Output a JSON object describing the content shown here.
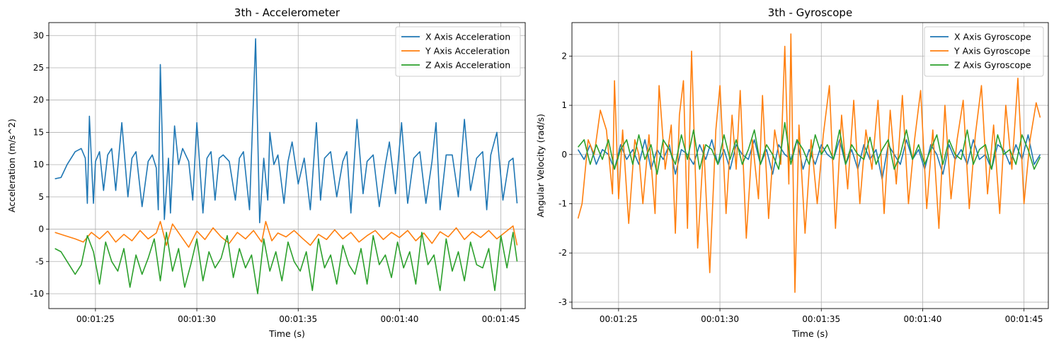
{
  "colors": {
    "x": "#1f77b4",
    "y": "#ff7f0e",
    "z": "#2ca02c",
    "grid": "#b0b0b0"
  },
  "chart_data": [
    {
      "type": "line",
      "title": "3th - Accelerometer",
      "xlabel": "Time (s)",
      "ylabel": "Acceleration (m/s^2)",
      "xlim": [
        82.7,
        106.2
      ],
      "ylim": [
        -12.3,
        32.0
      ],
      "yticks": [
        -10,
        -5,
        0,
        5,
        10,
        15,
        20,
        25,
        30
      ],
      "xticks": [
        85,
        90,
        95,
        100,
        105
      ],
      "xtick_labels": [
        "00:01:25",
        "00:01:30",
        "00:01:35",
        "00:01:40",
        "00:01:45"
      ],
      "grid": true,
      "legend": "top-right",
      "series": [
        {
          "name": "X Axis Acceleration",
          "color": "#1f77b4",
          "x": [
            83.0,
            83.3,
            83.6,
            84.0,
            84.3,
            84.5,
            84.6,
            84.7,
            84.9,
            85.0,
            85.2,
            85.4,
            85.6,
            85.8,
            86.0,
            86.3,
            86.6,
            86.8,
            87.0,
            87.3,
            87.6,
            87.8,
            88.0,
            88.1,
            88.2,
            88.4,
            88.6,
            88.7,
            88.9,
            89.1,
            89.3,
            89.6,
            89.8,
            90.0,
            90.3,
            90.5,
            90.7,
            90.9,
            91.1,
            91.3,
            91.6,
            91.9,
            92.1,
            92.3,
            92.6,
            92.9,
            93.1,
            93.3,
            93.5,
            93.6,
            93.8,
            94.0,
            94.3,
            94.5,
            94.7,
            95.0,
            95.3,
            95.6,
            95.9,
            96.1,
            96.3,
            96.6,
            96.9,
            97.2,
            97.4,
            97.6,
            97.9,
            98.2,
            98.4,
            98.7,
            99.0,
            99.3,
            99.5,
            99.8,
            100.1,
            100.4,
            100.7,
            101.0,
            101.3,
            101.6,
            101.8,
            102.0,
            102.3,
            102.6,
            102.9,
            103.2,
            103.5,
            103.8,
            104.1,
            104.3,
            104.5,
            104.8,
            105.1,
            105.4,
            105.6,
            105.8
          ],
          "y": [
            7.8,
            8.0,
            10.0,
            12.0,
            12.5,
            11.0,
            4.0,
            17.5,
            4.0,
            10.5,
            12.0,
            6.0,
            11.5,
            12.5,
            6.0,
            16.5,
            5.0,
            11.0,
            12.0,
            3.5,
            10.5,
            11.5,
            9.5,
            3.0,
            25.5,
            1.5,
            11.0,
            2.5,
            16.0,
            10.0,
            12.5,
            10.5,
            4.5,
            16.5,
            2.5,
            11.0,
            12.0,
            4.5,
            11.0,
            11.5,
            10.5,
            4.5,
            11.0,
            12.0,
            3.0,
            29.5,
            1.0,
            11.0,
            4.5,
            15.0,
            10.0,
            11.5,
            4.0,
            10.5,
            13.5,
            7.0,
            11.0,
            3.0,
            16.5,
            4.5,
            11.0,
            12.0,
            5.0,
            10.5,
            12.0,
            2.5,
            17.0,
            5.5,
            10.5,
            11.5,
            3.5,
            10.0,
            13.5,
            5.5,
            16.5,
            4.0,
            11.0,
            12.0,
            4.0,
            10.5,
            16.5,
            3.0,
            11.5,
            11.5,
            5.0,
            17.0,
            6.0,
            11.0,
            12.0,
            3.0,
            11.5,
            15.0,
            4.5,
            10.5,
            11.0,
            4.0
          ]
        },
        {
          "name": "Y Axis Acceleration",
          "color": "#ff7f0e",
          "x": [
            83.0,
            83.5,
            84.0,
            84.4,
            84.8,
            85.2,
            85.6,
            86.0,
            86.4,
            86.8,
            87.2,
            87.6,
            88.0,
            88.2,
            88.5,
            88.8,
            89.2,
            89.6,
            90.0,
            90.4,
            90.8,
            91.2,
            91.6,
            92.0,
            92.4,
            92.8,
            93.2,
            93.4,
            93.7,
            94.0,
            94.4,
            94.8,
            95.2,
            95.6,
            96.0,
            96.4,
            96.8,
            97.2,
            97.6,
            98.0,
            98.4,
            98.8,
            99.2,
            99.6,
            100.0,
            100.4,
            100.8,
            101.2,
            101.6,
            102.0,
            102.4,
            102.8,
            103.2,
            103.6,
            104.0,
            104.4,
            104.8,
            105.2,
            105.6,
            105.8
          ],
          "y": [
            -0.5,
            -1.0,
            -1.5,
            -2.0,
            -0.5,
            -1.5,
            -0.3,
            -2.0,
            -0.8,
            -1.8,
            -0.2,
            -1.5,
            -0.6,
            1.2,
            -2.5,
            0.8,
            -1.0,
            -2.8,
            -0.3,
            -1.6,
            0.2,
            -1.2,
            -2.2,
            -0.5,
            -1.5,
            -0.2,
            -2.0,
            1.2,
            -1.8,
            -0.6,
            -1.2,
            -0.2,
            -1.4,
            -2.5,
            -0.8,
            -1.6,
            -0.1,
            -1.5,
            -0.5,
            -2.0,
            -1.0,
            -0.2,
            -1.6,
            -0.5,
            -1.3,
            -0.2,
            -1.8,
            -0.6,
            -2.2,
            -0.4,
            -1.2,
            0.2,
            -1.6,
            -0.4,
            -1.3,
            -0.2,
            -1.5,
            -0.5,
            0.5,
            -2.5
          ]
        },
        {
          "name": "Z Axis Acceleration",
          "color": "#2ca02c",
          "x": [
            83.0,
            83.3,
            83.6,
            84.0,
            84.3,
            84.6,
            84.9,
            85.2,
            85.5,
            85.8,
            86.1,
            86.4,
            86.7,
            87.0,
            87.3,
            87.6,
            87.9,
            88.2,
            88.5,
            88.8,
            89.1,
            89.4,
            89.7,
            90.0,
            90.3,
            90.6,
            90.9,
            91.2,
            91.5,
            91.8,
            92.1,
            92.4,
            92.7,
            93.0,
            93.3,
            93.6,
            93.9,
            94.2,
            94.5,
            94.8,
            95.1,
            95.4,
            95.7,
            96.0,
            96.3,
            96.6,
            96.9,
            97.2,
            97.5,
            97.8,
            98.1,
            98.4,
            98.7,
            99.0,
            99.3,
            99.6,
            99.9,
            100.2,
            100.5,
            100.8,
            101.1,
            101.4,
            101.7,
            102.0,
            102.3,
            102.6,
            102.9,
            103.2,
            103.5,
            103.8,
            104.1,
            104.4,
            104.7,
            105.0,
            105.3,
            105.6,
            105.8
          ],
          "y": [
            -3.0,
            -3.5,
            -5.0,
            -7.0,
            -5.5,
            -1.0,
            -3.5,
            -8.5,
            -2.0,
            -5.0,
            -6.5,
            -3.0,
            -9.0,
            -4.0,
            -7.0,
            -4.5,
            -1.5,
            -8.0,
            -0.5,
            -6.5,
            -3.0,
            -9.0,
            -5.5,
            -1.5,
            -8.0,
            -3.5,
            -6.0,
            -4.5,
            -1.0,
            -7.5,
            -3.0,
            -6.0,
            -4.0,
            -10.0,
            -1.5,
            -6.5,
            -3.5,
            -8.0,
            -2.0,
            -5.0,
            -6.5,
            -3.5,
            -9.5,
            -1.5,
            -6.0,
            -4.0,
            -8.5,
            -2.5,
            -5.5,
            -7.0,
            -3.0,
            -8.5,
            -1.0,
            -5.5,
            -4.0,
            -7.5,
            -2.0,
            -6.0,
            -3.5,
            -8.5,
            -0.5,
            -5.5,
            -4.0,
            -9.5,
            -1.5,
            -6.5,
            -3.5,
            -8.0,
            -2.0,
            -5.5,
            -6.0,
            -3.0,
            -9.5,
            -1.0,
            -6.0,
            -0.5,
            -5.0
          ]
        }
      ]
    },
    {
      "type": "line",
      "title": "3th - Gyroscope",
      "xlabel": "Time (s)",
      "ylabel": "Angular Velocity (rad/s)",
      "xlim": [
        82.7,
        106.2
      ],
      "ylim": [
        -3.13,
        2.68
      ],
      "yticks": [
        -3,
        -2,
        -1,
        0,
        1,
        2
      ],
      "xticks": [
        85,
        90,
        95,
        100,
        105
      ],
      "xtick_labels": [
        "00:01:25",
        "00:01:30",
        "00:01:35",
        "00:01:40",
        "00:01:45"
      ],
      "grid": true,
      "legend": "top-right",
      "series": [
        {
          "name": "X Axis Gyroscope",
          "color": "#1f77b4",
          "x": [
            83.0,
            83.3,
            83.6,
            83.9,
            84.2,
            84.5,
            84.8,
            85.1,
            85.4,
            85.7,
            86.0,
            86.3,
            86.6,
            86.9,
            87.2,
            87.5,
            87.8,
            88.1,
            88.4,
            88.7,
            89.0,
            89.3,
            89.6,
            89.9,
            90.2,
            90.5,
            90.8,
            91.1,
            91.4,
            91.7,
            92.0,
            92.3,
            92.6,
            92.9,
            93.2,
            93.5,
            93.8,
            94.1,
            94.4,
            94.7,
            95.0,
            95.3,
            95.6,
            95.9,
            96.2,
            96.5,
            96.8,
            97.1,
            97.4,
            97.7,
            98.0,
            98.3,
            98.6,
            98.9,
            99.2,
            99.5,
            99.8,
            100.1,
            100.4,
            100.7,
            101.0,
            101.3,
            101.6,
            101.9,
            102.2,
            102.5,
            102.8,
            103.1,
            103.4,
            103.7,
            104.0,
            104.3,
            104.6,
            104.9,
            105.2,
            105.5,
            105.8
          ],
          "y": [
            0.1,
            -0.1,
            0.2,
            -0.2,
            0.1,
            0.0,
            -0.3,
            0.2,
            -0.1,
            0.1,
            -0.2,
            0.3,
            -0.3,
            0.1,
            -0.1,
            0.2,
            -0.4,
            0.1,
            0.0,
            -0.2,
            0.2,
            -0.1,
            0.3,
            -0.2,
            0.1,
            -0.3,
            0.2,
            0.0,
            -0.1,
            0.3,
            -0.2,
            0.1,
            -0.4,
            0.2,
            0.0,
            -0.1,
            0.3,
            -0.3,
            0.1,
            -0.2,
            0.2,
            0.0,
            -0.1,
            0.3,
            -0.2,
            0.1,
            -0.3,
            0.2,
            -0.1,
            0.1,
            -0.5,
            0.2,
            0.0,
            -0.2,
            0.3,
            -0.1,
            0.1,
            -0.3,
            0.2,
            0.0,
            -0.4,
            0.2,
            -0.1,
            0.1,
            -0.2,
            0.3,
            -0.1,
            0.0,
            -0.3,
            0.2,
            0.1,
            -0.2,
            0.2,
            -0.1,
            0.4,
            -0.2,
            0.0
          ]
        },
        {
          "name": "Y Axis Gyroscope",
          "color": "#ff7f0e",
          "x": [
            83.0,
            83.2,
            83.5,
            83.8,
            84.1,
            84.4,
            84.7,
            84.8,
            85.0,
            85.2,
            85.5,
            85.8,
            86.0,
            86.2,
            86.5,
            86.8,
            87.0,
            87.3,
            87.6,
            87.8,
            88.0,
            88.2,
            88.4,
            88.6,
            88.9,
            89.2,
            89.5,
            89.8,
            90.0,
            90.3,
            90.6,
            90.8,
            91.0,
            91.3,
            91.6,
            91.9,
            92.1,
            92.4,
            92.7,
            93.0,
            93.2,
            93.4,
            93.5,
            93.7,
            93.9,
            94.2,
            94.5,
            94.8,
            95.1,
            95.4,
            95.7,
            96.0,
            96.3,
            96.6,
            96.9,
            97.2,
            97.5,
            97.8,
            98.1,
            98.4,
            98.7,
            99.0,
            99.3,
            99.6,
            99.9,
            100.2,
            100.5,
            100.8,
            101.1,
            101.4,
            101.7,
            102.0,
            102.3,
            102.6,
            102.9,
            103.2,
            103.5,
            103.8,
            104.1,
            104.4,
            104.7,
            105.0,
            105.3,
            105.6,
            105.8
          ],
          "y": [
            -1.3,
            -1.0,
            0.3,
            0.0,
            0.9,
            0.5,
            -0.8,
            1.5,
            -0.9,
            0.5,
            -1.4,
            0.3,
            0.0,
            -1.0,
            0.4,
            -1.2,
            1.4,
            -0.3,
            0.6,
            -1.6,
            0.8,
            1.5,
            -1.5,
            2.1,
            -1.9,
            0.2,
            -2.4,
            0.5,
            1.4,
            -1.2,
            0.8,
            -0.3,
            1.3,
            -1.7,
            0.3,
            -0.9,
            1.2,
            -1.3,
            0.5,
            -0.2,
            2.2,
            -0.6,
            2.45,
            -2.8,
            0.6,
            -1.6,
            0.3,
            -1.0,
            0.4,
            1.4,
            -1.5,
            0.8,
            -0.7,
            1.1,
            -1.0,
            0.5,
            -0.3,
            1.1,
            -1.2,
            0.9,
            -0.6,
            1.2,
            -1.0,
            0.3,
            1.3,
            -1.1,
            0.5,
            -1.5,
            1.0,
            -0.9,
            0.3,
            1.1,
            -1.1,
            0.4,
            1.4,
            -0.8,
            0.6,
            -1.2,
            1.0,
            -0.3,
            1.55,
            -1.0,
            0.3,
            1.05,
            0.75
          ]
        },
        {
          "name": "Z Axis Gyroscope",
          "color": "#2ca02c",
          "x": [
            83.0,
            83.3,
            83.6,
            83.9,
            84.2,
            84.5,
            84.8,
            85.1,
            85.4,
            85.7,
            86.0,
            86.3,
            86.6,
            86.9,
            87.2,
            87.5,
            87.8,
            88.1,
            88.4,
            88.7,
            89.0,
            89.3,
            89.6,
            89.9,
            90.2,
            90.5,
            90.8,
            91.1,
            91.4,
            91.7,
            92.0,
            92.3,
            92.6,
            92.9,
            93.2,
            93.5,
            93.8,
            94.1,
            94.4,
            94.7,
            95.0,
            95.3,
            95.6,
            95.9,
            96.2,
            96.5,
            96.8,
            97.1,
            97.4,
            97.7,
            98.0,
            98.3,
            98.6,
            98.9,
            99.2,
            99.5,
            99.8,
            100.1,
            100.4,
            100.7,
            101.0,
            101.3,
            101.6,
            101.9,
            102.2,
            102.5,
            102.8,
            103.1,
            103.4,
            103.7,
            104.0,
            104.3,
            104.6,
            104.9,
            105.2,
            105.5,
            105.8
          ],
          "y": [
            0.15,
            0.3,
            -0.2,
            0.2,
            -0.1,
            0.3,
            -0.3,
            0.1,
            0.3,
            -0.2,
            0.4,
            -0.1,
            0.2,
            -0.4,
            0.3,
            0.1,
            -0.2,
            0.4,
            -0.1,
            0.5,
            -0.3,
            0.2,
            0.1,
            -0.2,
            0.4,
            -0.1,
            0.3,
            -0.2,
            0.1,
            0.5,
            -0.2,
            0.2,
            0.0,
            -0.3,
            0.65,
            -0.2,
            0.3,
            0.1,
            -0.2,
            0.4,
            0.0,
            0.2,
            -0.1,
            0.5,
            -0.2,
            0.2,
            0.0,
            -0.1,
            0.35,
            -0.2,
            0.1,
            0.3,
            -0.3,
            0.0,
            0.5,
            -0.1,
            0.2,
            -0.2,
            0.1,
            0.4,
            -0.2,
            0.3,
            0.0,
            -0.1,
            0.5,
            -0.2,
            0.1,
            0.2,
            -0.3,
            0.4,
            0.0,
            0.1,
            -0.2,
            0.4,
            0.1,
            -0.3,
            -0.05
          ]
        }
      ]
    }
  ]
}
